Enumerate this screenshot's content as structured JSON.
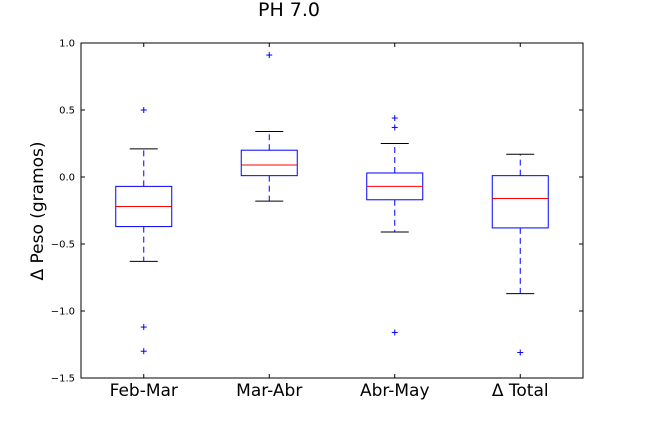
{
  "chart_data": {
    "type": "box",
    "title": "PH 7.0",
    "ylabel": "Δ Peso (gramos)",
    "xlabel": "",
    "ylim": [
      -1.5,
      1.0
    ],
    "yticks": [
      1.0,
      0.5,
      0.0,
      -0.5,
      -1.0,
      -1.5
    ],
    "ytick_labels": [
      "1.0",
      "0.5",
      "0.0",
      "−0.5",
      "−1.0",
      "−1.5"
    ],
    "categories": [
      "Feb-Mar",
      "Mar-Abr",
      "Abr-May",
      "Δ Total"
    ],
    "boxes": [
      {
        "q1": -0.37,
        "median": -0.22,
        "q3": -0.07,
        "whisker_low": -0.63,
        "whisker_high": 0.21,
        "outliers": [
          0.5,
          -1.12,
          -1.3
        ]
      },
      {
        "q1": 0.01,
        "median": 0.09,
        "q3": 0.2,
        "whisker_low": -0.18,
        "whisker_high": 0.34,
        "outliers": [
          0.91
        ]
      },
      {
        "q1": -0.17,
        "median": -0.07,
        "q3": 0.03,
        "whisker_low": -0.41,
        "whisker_high": 0.25,
        "outliers": [
          0.44,
          0.37,
          -1.16
        ]
      },
      {
        "q1": -0.38,
        "median": -0.16,
        "q3": 0.01,
        "whisker_low": -0.87,
        "whisker_high": 0.17,
        "outliers": [
          -1.31
        ]
      }
    ],
    "grid": false,
    "colors": {
      "box": "#0000ff",
      "median": "#ff0000",
      "whisker_cap": "#000000",
      "outlier": "#0000ff",
      "frame": "#000000"
    }
  }
}
